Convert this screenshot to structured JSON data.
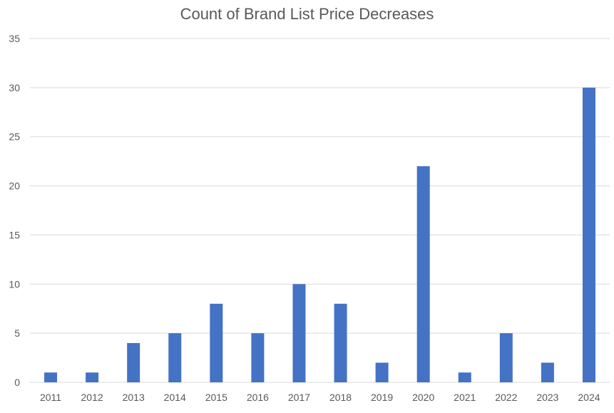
{
  "chart_data": {
    "type": "bar",
    "title": "Count of Brand List Price Decreases",
    "xlabel": "",
    "ylabel": "",
    "categories": [
      "2011",
      "2012",
      "2013",
      "2014",
      "2015",
      "2016",
      "2017",
      "2018",
      "2019",
      "2020",
      "2021",
      "2022",
      "2023",
      "2024"
    ],
    "values": [
      1,
      1,
      4,
      5,
      8,
      5,
      10,
      8,
      2,
      22,
      1,
      5,
      2,
      30
    ],
    "ylim": [
      0,
      35
    ],
    "yticks": [
      0,
      5,
      10,
      15,
      20,
      25,
      30,
      35
    ],
    "grid": true,
    "legend": "none",
    "colors": {
      "bar": "#4472C4",
      "grid": "#D9D9D9",
      "text": "#595959"
    }
  }
}
